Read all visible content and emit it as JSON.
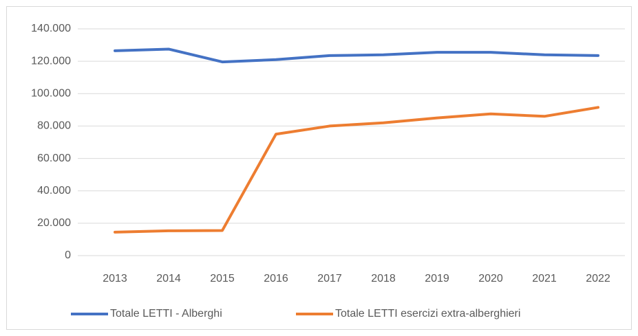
{
  "chart_data": {
    "type": "line",
    "categories": [
      "2013",
      "2014",
      "2015",
      "2016",
      "2017",
      "2018",
      "2019",
      "2020",
      "2021",
      "2022"
    ],
    "series": [
      {
        "name": "Totale LETTI - Alberghi",
        "color": "#4472c4",
        "values": [
          126500,
          127500,
          119600,
          121000,
          123500,
          124000,
          125500,
          125500,
          124000,
          123500
        ]
      },
      {
        "name": "Totale LETTI esercizi extra-alberghieri",
        "color": "#ed7d31",
        "values": [
          14500,
          15300,
          15500,
          75000,
          80000,
          82000,
          85000,
          87500,
          86000,
          91500
        ]
      }
    ],
    "ylim": [
      0,
      140000
    ],
    "yticks": [
      0,
      {
        "value": 20000,
        "label": "20.000"
      },
      {
        "value": 40000,
        "label": "40.000"
      },
      {
        "value": 60000,
        "label": "60.000"
      },
      {
        "value": 80000,
        "label": "80.000"
      },
      {
        "value": 100000,
        "label": "100.000"
      },
      {
        "value": 120000,
        "label": "120.000"
      },
      {
        "value": 140000,
        "label": "140.000"
      }
    ],
    "grid": true,
    "legend": "bottom"
  }
}
